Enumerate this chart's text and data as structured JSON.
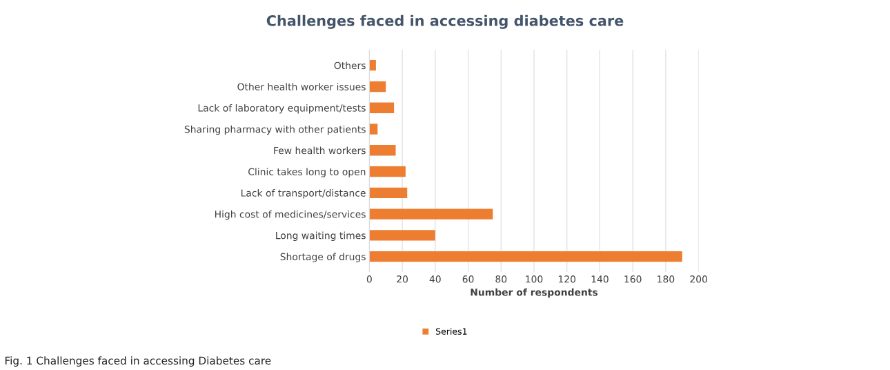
{
  "chart_data": {
    "type": "bar",
    "orientation": "horizontal",
    "title": "Challenges faced in accessing diabetes care",
    "categories": [
      "Others",
      "Other health worker issues",
      "Lack of laboratory equipment/tests",
      "Sharing pharmacy with other patients",
      "Few health workers",
      "Clinic takes long to open",
      "Lack of transport/distance",
      "High cost of medicines/services",
      "Long waiting times",
      "Shortage of drugs"
    ],
    "series": [
      {
        "name": "Series1",
        "color": "#ed7d31",
        "values": [
          4,
          10,
          15,
          5,
          16,
          22,
          23,
          75,
          40,
          190
        ]
      }
    ],
    "xlabel": "Number of respondents",
    "xlim": [
      0,
      200
    ],
    "xticks": [
      0,
      20,
      40,
      60,
      80,
      100,
      120,
      140,
      160,
      180,
      200
    ],
    "grid": "x",
    "legend": "bottom",
    "annotations": [
      "Fig. 1 Challenges faced in accessing Diabetes care"
    ]
  }
}
